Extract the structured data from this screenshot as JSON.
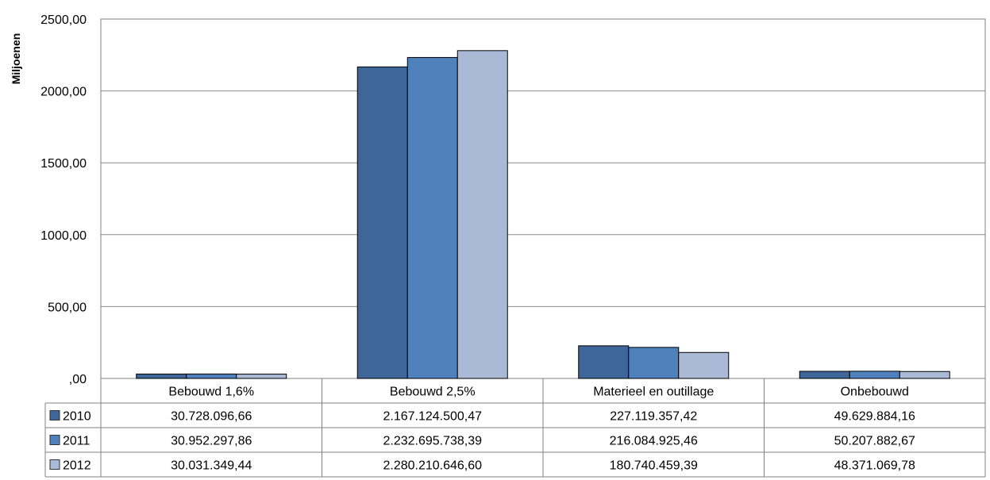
{
  "chart_data": {
    "type": "bar",
    "title": "",
    "xlabel": "",
    "ylabel": "Miljoenen",
    "ylim": [
      0,
      2500
    ],
    "yticks": [
      "2500,00",
      "2000,00",
      "1500,00",
      "1000,00",
      "500,00",
      ",00"
    ],
    "categories": [
      "Bebouwd 1,6%",
      "Bebouwd 2,5%",
      "Materieel en outillage",
      "Onbebouwd"
    ],
    "series": [
      {
        "name": "2010",
        "color": "#3E6699",
        "values": [
          30.72809666,
          2167.12450047,
          227.11935742,
          49.62988416
        ],
        "labels": [
          "30.728.096,66",
          "2.167.124.500,47",
          "227.119.357,42",
          "49.629.884,16"
        ]
      },
      {
        "name": "2011",
        "color": "#4F81BD",
        "values": [
          30.95229786,
          2232.69573839,
          216.08492546,
          50.20788267
        ],
        "labels": [
          "30.952.297,86",
          "2.232.695.738,39",
          "216.084.925,46",
          "50.207.882,67"
        ]
      },
      {
        "name": "2012",
        "color": "#A9B9D6",
        "values": [
          30.03134944,
          2280.2106466,
          180.74045939,
          48.37106978
        ],
        "labels": [
          "30.031.349,44",
          "2.280.210.646,60",
          "180.740.459,39",
          "48.371.069,78"
        ]
      }
    ],
    "grid": true,
    "legend": "data-table"
  }
}
